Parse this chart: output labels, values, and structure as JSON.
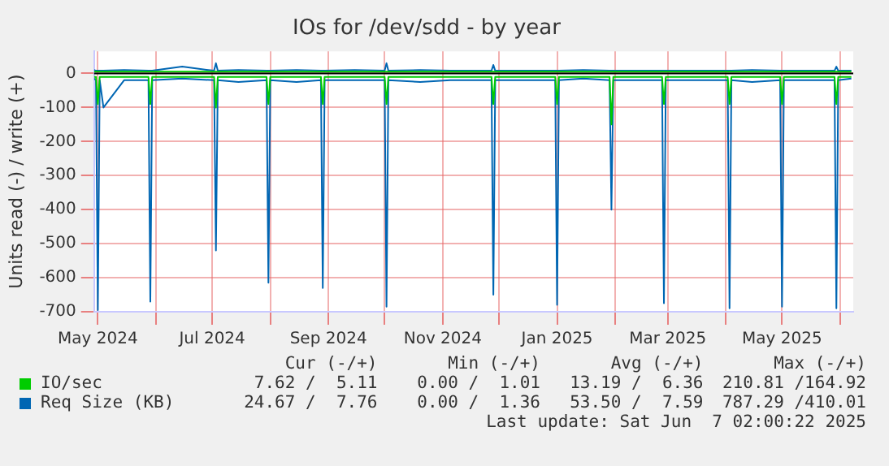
{
  "chart_data": {
    "type": "line",
    "title": "IOs for /dev/sdd - by year",
    "ylabel": "Units read (-) / write (+)",
    "x": [
      "2024-04-29",
      "2024-04-30",
      "2024-05-01",
      "2024-05-02",
      "2024-05-04",
      "2024-05-15",
      "2024-05-28",
      "2024-05-29",
      "2024-05-30",
      "2024-06-15",
      "2024-07-02",
      "2024-07-03",
      "2024-07-04",
      "2024-07-15",
      "2024-07-30",
      "2024-07-31",
      "2024-08-01",
      "2024-08-15",
      "2024-08-28",
      "2024-08-29",
      "2024-08-30",
      "2024-09-15",
      "2024-10-01",
      "2024-10-02",
      "2024-10-03",
      "2024-10-20",
      "2024-11-05",
      "2024-11-27",
      "2024-11-28",
      "2024-11-29",
      "2024-12-15",
      "2024-12-31",
      "2025-01-01",
      "2025-01-02",
      "2025-01-15",
      "2025-01-29",
      "2025-01-30",
      "2025-01-31",
      "2025-02-15",
      "2025-02-26",
      "2025-02-27",
      "2025-02-28",
      "2025-03-15",
      "2025-04-02",
      "2025-04-03",
      "2025-04-04",
      "2025-04-15",
      "2025-04-30",
      "2025-05-01",
      "2025-05-02",
      "2025-05-15",
      "2025-05-29",
      "2025-05-30",
      "2025-05-31",
      "2025-06-07"
    ],
    "series": [
      {
        "name": "IO/sec",
        "color": "#00cc00",
        "values": [
          -10,
          -10,
          -90,
          -10,
          -10,
          -10,
          -10,
          -90,
          -10,
          -10,
          -10,
          -100,
          -10,
          -10,
          -10,
          -90,
          -10,
          -10,
          -10,
          -90,
          -10,
          -10,
          -10,
          -90,
          -10,
          -10,
          -10,
          -10,
          -90,
          -10,
          -10,
          -10,
          -90,
          -10,
          -10,
          -10,
          -150,
          -10,
          -10,
          -10,
          -90,
          -10,
          -10,
          -10,
          -90,
          -10,
          -10,
          -10,
          -90,
          -10,
          -10,
          -10,
          -90,
          -10,
          -10
        ]
      },
      {
        "color": "#00cc00",
        "values": [
          5,
          5,
          5,
          5,
          5,
          5,
          5,
          5,
          5,
          5,
          5,
          5,
          5,
          5,
          5,
          5,
          5,
          5,
          5,
          5,
          5,
          5,
          5,
          5,
          5,
          5,
          5,
          5,
          5,
          5,
          5,
          5,
          5,
          5,
          5,
          5,
          5,
          5,
          5,
          5,
          5,
          5,
          5,
          5,
          5,
          5,
          5,
          5,
          5,
          5,
          5,
          5,
          5,
          5,
          5
        ]
      },
      {
        "name": "Req Size (KB)",
        "color": "#0066b3",
        "values": [
          -15,
          -20,
          -695,
          -20,
          -100,
          -20,
          -20,
          -670,
          -20,
          -15,
          -20,
          -520,
          -20,
          -25,
          -20,
          -615,
          -20,
          -25,
          -20,
          -630,
          -20,
          -20,
          -20,
          -685,
          -20,
          -25,
          -20,
          -20,
          -650,
          -20,
          -20,
          -20,
          -680,
          -20,
          -15,
          -20,
          -400,
          -20,
          -20,
          -20,
          -675,
          -20,
          -20,
          -20,
          -690,
          -20,
          -25,
          -20,
          -685,
          -20,
          -20,
          -20,
          -690,
          -20,
          -15
        ]
      },
      {
        "color": "#0066b3",
        "values": [
          10,
          8,
          8,
          8,
          8,
          10,
          8,
          8,
          8,
          20,
          8,
          30,
          8,
          10,
          8,
          8,
          8,
          10,
          8,
          8,
          8,
          10,
          8,
          30,
          8,
          10,
          8,
          8,
          25,
          8,
          8,
          8,
          8,
          8,
          10,
          8,
          8,
          8,
          8,
          8,
          8,
          8,
          8,
          8,
          8,
          8,
          10,
          8,
          8,
          8,
          8,
          8,
          20,
          8,
          8
        ]
      }
    ],
    "xlim": [
      "2024-04-29",
      "2025-06-08"
    ],
    "xticks": [
      {
        "value": "2024-05-01",
        "label": "May 2024"
      },
      {
        "value": "2024-06-01",
        "label": null
      },
      {
        "value": "2024-07-01",
        "label": "Jul 2024"
      },
      {
        "value": "2024-08-01",
        "label": null
      },
      {
        "value": "2024-09-01",
        "label": "Sep 2024"
      },
      {
        "value": "2024-10-01",
        "label": null
      },
      {
        "value": "2024-11-01",
        "label": "Nov 2024"
      },
      {
        "value": "2024-12-01",
        "label": null
      },
      {
        "value": "2025-01-01",
        "label": "Jan 2025"
      },
      {
        "value": "2025-02-01",
        "label": null
      },
      {
        "value": "2025-03-01",
        "label": "Mar 2025"
      },
      {
        "value": "2025-04-01",
        "label": null
      },
      {
        "value": "2025-05-01",
        "label": "May 2025"
      },
      {
        "value": "2025-06-01",
        "label": null
      }
    ],
    "ylim": [
      -700,
      65
    ],
    "yticks": [
      -700,
      -600,
      -500,
      -400,
      -300,
      -200,
      -100,
      0
    ],
    "ref_lines": [
      {
        "axis": "y",
        "value": 0,
        "color": "#000000"
      }
    ],
    "grid": true,
    "legend": "bottom",
    "annotations": [
      "Cur (-/+)",
      "Min (-/+)",
      "Avg (-/+)",
      "Max (-/+)",
      "7.62 /  5.11",
      "0.00 /  1.01",
      "13.19 /  6.36",
      "210.81 /164.92",
      "24.67 /  7.76",
      "0.00 /  1.36",
      "53.50 /  7.59",
      "787.29 /410.01",
      "Last update: Sat Jun  7 02:00:22 2025"
    ]
  }
}
